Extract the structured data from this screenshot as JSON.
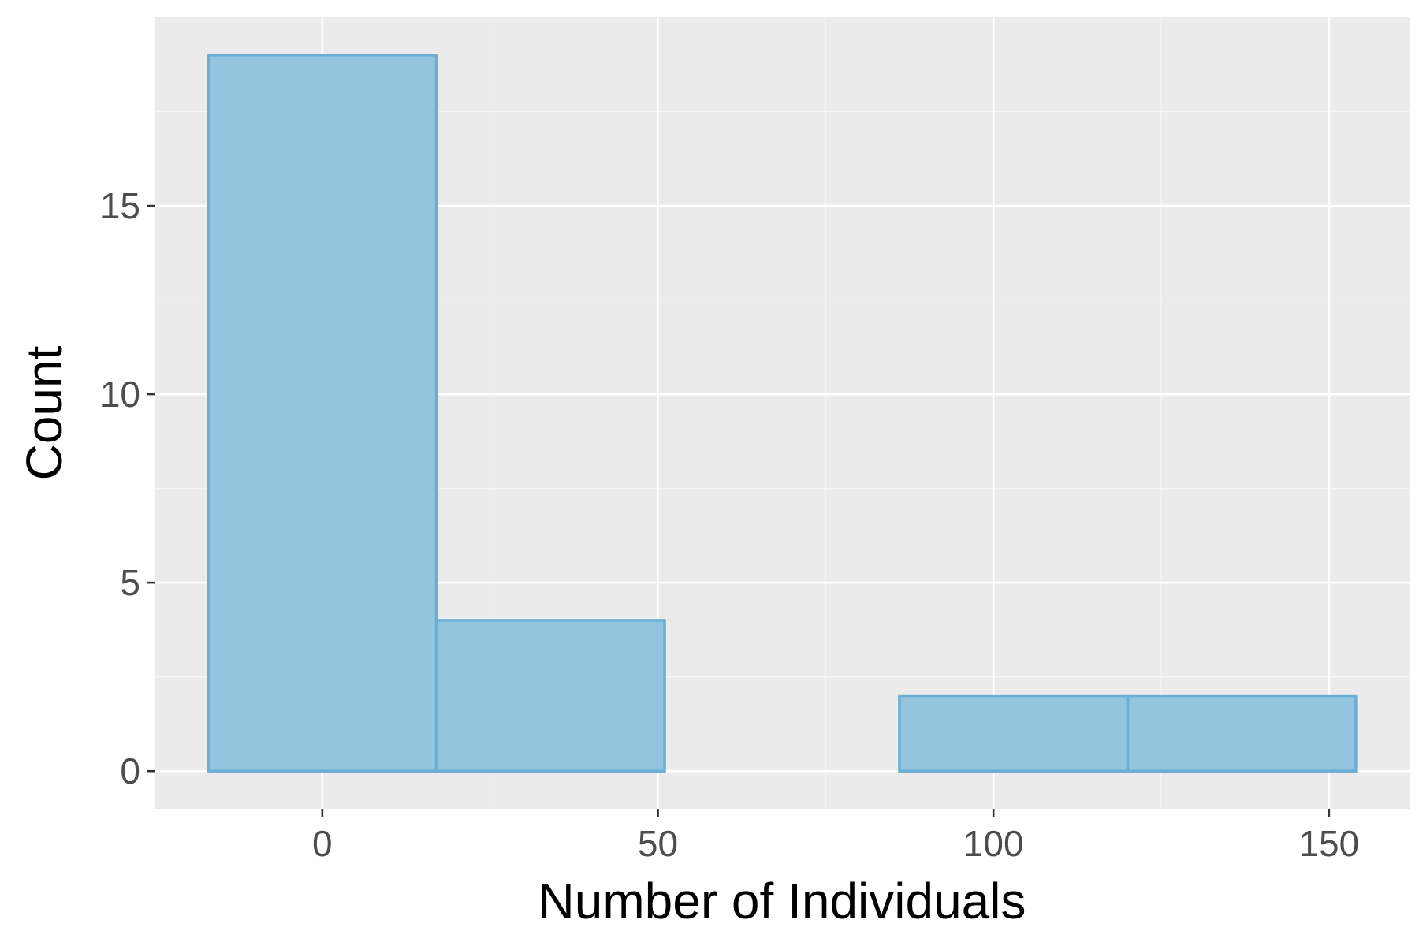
{
  "chart_data": {
    "type": "bar",
    "subtype": "histogram",
    "xlabel": "Number of Individuals",
    "ylabel": "Count",
    "bins": [
      {
        "start": -17,
        "end": 17,
        "count": 19
      },
      {
        "start": 17,
        "end": 51,
        "count": 4
      },
      {
        "start": 51,
        "end": 86,
        "count": 0
      },
      {
        "start": 86,
        "end": 120,
        "count": 2
      },
      {
        "start": 120,
        "end": 154,
        "count": 2
      }
    ],
    "xlim": [
      -25,
      162
    ],
    "ylim": [
      -1,
      20
    ],
    "x_ticks": [
      0,
      50,
      100,
      150
    ],
    "x_tick_labels": [
      "0",
      "50",
      "100",
      "150"
    ],
    "y_ticks": [
      0,
      5,
      10,
      15
    ],
    "y_tick_labels": [
      "0",
      "5",
      "10",
      "15"
    ],
    "grid": true,
    "legend": "none",
    "colors": {
      "panel_background": "#ebebeb",
      "grid_major": "#ffffff",
      "grid_minor": "#f5f5f5",
      "bar_fill": "#93c5de",
      "bar_stroke": "#6aaed6",
      "tick_label": "#4d4d4d",
      "axis_title": "#000000"
    }
  }
}
